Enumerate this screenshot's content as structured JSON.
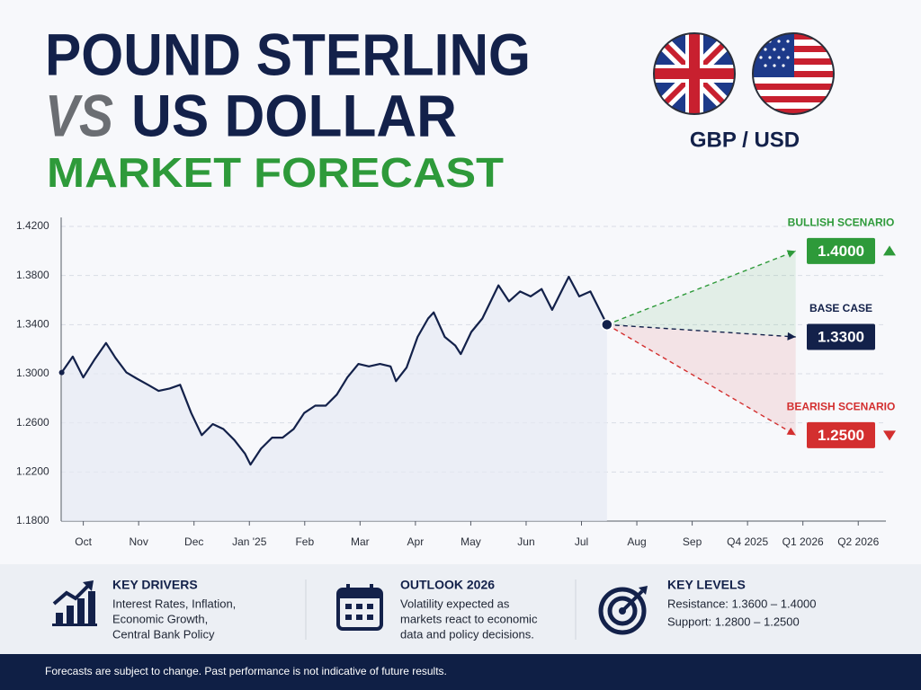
{
  "header": {
    "title_line1": "POUND STERLING",
    "title_vs": "VS",
    "title_line2": "US DOLLAR",
    "subtitle": "MARKET FORECAST",
    "pair": "GBP / USD"
  },
  "chart_data": {
    "type": "line",
    "color": "#13214a",
    "x": [
      0.61,
      0.81,
      1.0,
      1.21,
      1.41,
      1.58,
      1.78,
      1.97,
      2.17,
      2.36,
      2.56,
      2.75,
      2.95,
      3.14,
      3.34,
      3.53,
      3.73,
      3.92,
      4.02,
      4.21,
      4.41,
      4.6,
      4.8,
      4.99,
      5.19,
      5.38,
      5.58,
      5.77,
      5.97,
      6.16,
      6.36,
      6.55,
      6.65,
      6.84,
      7.04,
      7.23,
      7.33,
      7.53,
      7.72,
      7.82,
      8.01,
      8.21,
      8.5,
      8.69,
      8.89,
      9.08,
      9.28,
      9.47,
      9.67,
      9.77,
      9.96,
      10.16,
      10.35,
      10.46
    ],
    "values": [
      1.301,
      1.314,
      1.297,
      1.312,
      1.325,
      1.313,
      1.301,
      1.296,
      1.291,
      1.286,
      1.288,
      1.291,
      1.268,
      1.25,
      1.259,
      1.255,
      1.246,
      1.235,
      1.226,
      1.239,
      1.248,
      1.248,
      1.255,
      1.268,
      1.274,
      1.274,
      1.283,
      1.297,
      1.308,
      1.306,
      1.308,
      1.306,
      1.294,
      1.305,
      1.33,
      1.345,
      1.35,
      1.33,
      1.323,
      1.316,
      1.334,
      1.345,
      1.372,
      1.359,
      1.367,
      1.363,
      1.369,
      1.352,
      1.37,
      1.379,
      1.363,
      1.367,
      1.35,
      1.34
    ],
    "forecasts": [
      {
        "name": "BULLISH SCENARIO",
        "color": "#2e9a3a",
        "x": [
          10.46,
          13.87
        ],
        "values": [
          1.34,
          1.4
        ],
        "value_label": "1.4000",
        "arrow": "up"
      },
      {
        "name": "BASE CASE",
        "color": "#13214a",
        "x": [
          10.46,
          13.87
        ],
        "values": [
          1.34,
          1.33
        ],
        "value_label": "1.3300"
      },
      {
        "name": "BEARISH SCENARIO",
        "color": "#d32f2f",
        "x": [
          10.46,
          13.87
        ],
        "values": [
          1.34,
          1.25
        ],
        "value_label": "1.2500",
        "arrow": "down"
      }
    ],
    "xlim": [
      0.6,
      15.5
    ],
    "xticks": [
      {
        "value": 1,
        "label": "Oct"
      },
      {
        "value": 2,
        "label": "Nov"
      },
      {
        "value": 3,
        "label": "Dec"
      },
      {
        "value": 4,
        "label": "Jan '25"
      },
      {
        "value": 5,
        "label": "Feb"
      },
      {
        "value": 6,
        "label": "Mar"
      },
      {
        "value": 7,
        "label": "Apr"
      },
      {
        "value": 8,
        "label": "May"
      },
      {
        "value": 9,
        "label": "Jun"
      },
      {
        "value": 10,
        "label": "Jul"
      },
      {
        "value": 11,
        "label": "Aug"
      },
      {
        "value": 12,
        "label": "Sep"
      },
      {
        "value": 13,
        "label": "Q4 2025"
      },
      {
        "value": 14,
        "label": "Q1 2026"
      },
      {
        "value": 15,
        "label": "Q2 2026"
      }
    ],
    "ylim": [
      1.18,
      1.42
    ],
    "yticks": [
      {
        "value": 1.18,
        "label": "1.1800"
      },
      {
        "value": 1.22,
        "label": "1.2200"
      },
      {
        "value": 1.26,
        "label": "1.2600"
      },
      {
        "value": 1.3,
        "label": "1.3000"
      },
      {
        "value": 1.34,
        "label": "1.3400"
      },
      {
        "value": 1.38,
        "label": "1.3800"
      },
      {
        "value": 1.42,
        "label": "1.4200"
      }
    ],
    "grid": true
  },
  "info_panels": [
    {
      "title": "KEY DRIVERS",
      "lines": [
        "Interest Rates, Inflation,",
        "Economic Growth,",
        "Central Bank Policy"
      ]
    },
    {
      "title": "OUTLOOK 2026",
      "lines": [
        "Volatility expected as",
        "markets react to economic",
        "data and policy decisions."
      ]
    },
    {
      "title": "KEY LEVELS",
      "lines": [
        "Resistance: 1.3600 – 1.4000",
        "Support: 1.2800 – 1.2500"
      ]
    }
  ],
  "footer": "Forecasts are subject to change. Past performance is not indicative of future results."
}
